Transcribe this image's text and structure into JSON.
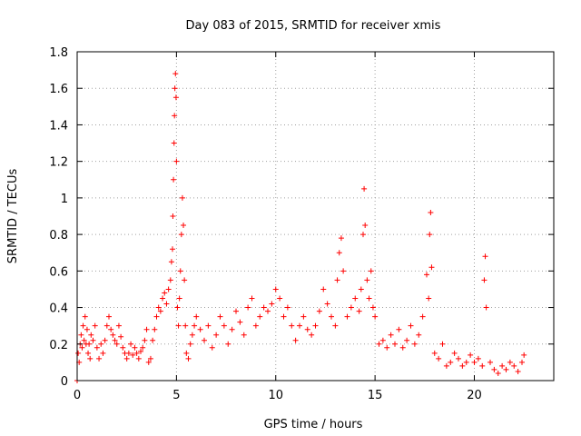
{
  "chart_data": {
    "type": "scatter",
    "title": "Day 083 of 2015, SRMTID for receiver xmis",
    "xlabel": "GPS time / hours",
    "ylabel": "SRMTID / TECUs",
    "xlim": [
      0,
      24
    ],
    "ylim": [
      0,
      1.8
    ],
    "xticks": [
      0,
      5,
      10,
      15,
      20
    ],
    "xtick_labels": [
      "0",
      "5",
      "10",
      "15",
      "20"
    ],
    "yticks": [
      0,
      0.2,
      0.4,
      0.6,
      0.8,
      1.0,
      1.2,
      1.4,
      1.6,
      1.8
    ],
    "ytick_labels": [
      "0",
      "0.2",
      "0.4",
      "0.6",
      "0.8",
      "1",
      "1.2",
      "1.4",
      "1.6",
      "1.8"
    ],
    "grid": true,
    "marker": "+",
    "color": "#ff0000",
    "series": [
      {
        "name": "SRMTID",
        "x": [
          0.0,
          0.05,
          0.1,
          0.15,
          0.2,
          0.25,
          0.3,
          0.35,
          0.4,
          0.45,
          0.5,
          0.55,
          0.6,
          0.65,
          0.7,
          0.8,
          0.9,
          1.0,
          1.1,
          1.2,
          1.3,
          1.4,
          1.5,
          1.6,
          1.7,
          1.8,
          1.9,
          2.0,
          2.1,
          2.2,
          2.3,
          2.4,
          2.5,
          2.6,
          2.7,
          2.8,
          2.9,
          3.0,
          3.1,
          3.2,
          3.3,
          3.4,
          3.5,
          3.6,
          3.7,
          3.8,
          3.9,
          4.0,
          4.1,
          4.2,
          4.3,
          4.4,
          4.5,
          4.6,
          4.7,
          4.75,
          4.8,
          4.82,
          4.85,
          4.88,
          4.9,
          4.92,
          4.95,
          4.98,
          5.0,
          5.05,
          5.1,
          5.15,
          5.2,
          5.25,
          5.3,
          5.35,
          5.4,
          5.45,
          5.5,
          5.6,
          5.7,
          5.8,
          5.9,
          6.0,
          6.2,
          6.4,
          6.6,
          6.8,
          7.0,
          7.2,
          7.4,
          7.6,
          7.8,
          8.0,
          8.2,
          8.4,
          8.6,
          8.8,
          9.0,
          9.2,
          9.4,
          9.6,
          9.8,
          10.0,
          10.2,
          10.4,
          10.6,
          10.8,
          11.0,
          11.2,
          11.4,
          11.6,
          11.8,
          12.0,
          12.2,
          12.4,
          12.6,
          12.8,
          13.0,
          13.1,
          13.2,
          13.3,
          13.4,
          13.6,
          13.8,
          14.0,
          14.2,
          14.3,
          14.4,
          14.45,
          14.5,
          14.6,
          14.7,
          14.8,
          14.9,
          15.0,
          15.2,
          15.4,
          15.6,
          15.8,
          16.0,
          16.2,
          16.4,
          16.6,
          16.8,
          17.0,
          17.2,
          17.4,
          17.6,
          17.7,
          17.75,
          17.8,
          17.85,
          18.0,
          18.2,
          18.4,
          18.6,
          18.8,
          19.0,
          19.2,
          19.4,
          19.6,
          19.8,
          20.0,
          20.2,
          20.4,
          20.5,
          20.55,
          20.6,
          20.8,
          21.0,
          21.2,
          21.4,
          21.6,
          21.8,
          22.0,
          22.2,
          22.4,
          22.5
        ],
        "y": [
          0.0,
          0.15,
          0.1,
          0.2,
          0.25,
          0.18,
          0.3,
          0.22,
          0.35,
          0.2,
          0.28,
          0.15,
          0.2,
          0.12,
          0.25,
          0.22,
          0.3,
          0.18,
          0.12,
          0.2,
          0.15,
          0.22,
          0.3,
          0.35,
          0.28,
          0.25,
          0.22,
          0.2,
          0.3,
          0.24,
          0.18,
          0.15,
          0.12,
          0.15,
          0.2,
          0.14,
          0.18,
          0.15,
          0.12,
          0.16,
          0.18,
          0.22,
          0.28,
          0.1,
          0.12,
          0.22,
          0.28,
          0.35,
          0.4,
          0.38,
          0.45,
          0.48,
          0.42,
          0.5,
          0.55,
          0.65,
          0.72,
          0.9,
          1.1,
          1.3,
          1.45,
          1.6,
          1.68,
          1.55,
          1.2,
          0.4,
          0.3,
          0.45,
          0.6,
          0.8,
          1.0,
          0.85,
          0.55,
          0.3,
          0.15,
          0.12,
          0.2,
          0.25,
          0.3,
          0.35,
          0.28,
          0.22,
          0.3,
          0.18,
          0.25,
          0.35,
          0.3,
          0.2,
          0.28,
          0.38,
          0.32,
          0.25,
          0.4,
          0.45,
          0.3,
          0.35,
          0.4,
          0.38,
          0.42,
          0.5,
          0.45,
          0.35,
          0.4,
          0.3,
          0.22,
          0.3,
          0.35,
          0.28,
          0.25,
          0.3,
          0.38,
          0.5,
          0.42,
          0.35,
          0.3,
          0.55,
          0.7,
          0.78,
          0.6,
          0.35,
          0.4,
          0.45,
          0.38,
          0.5,
          0.8,
          1.05,
          0.85,
          0.55,
          0.45,
          0.6,
          0.4,
          0.35,
          0.2,
          0.22,
          0.18,
          0.25,
          0.2,
          0.28,
          0.18,
          0.22,
          0.3,
          0.2,
          0.25,
          0.35,
          0.58,
          0.45,
          0.8,
          0.92,
          0.62,
          0.15,
          0.12,
          0.2,
          0.08,
          0.1,
          0.15,
          0.12,
          0.08,
          0.1,
          0.14,
          0.1,
          0.12,
          0.08,
          0.55,
          0.68,
          0.4,
          0.1,
          0.06,
          0.04,
          0.08,
          0.06,
          0.1,
          0.08,
          0.05,
          0.1,
          0.14
        ]
      }
    ]
  }
}
